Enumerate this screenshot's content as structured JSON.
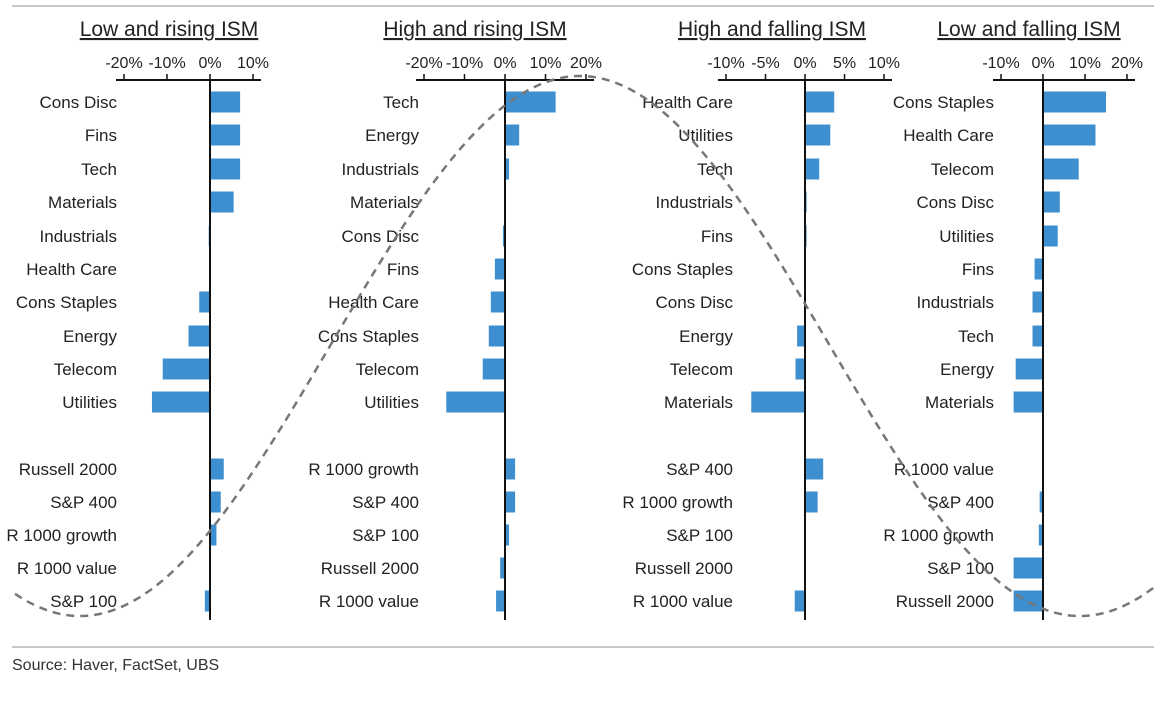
{
  "source": "Source: Haver, FactSet, UBS",
  "colors": {
    "bar": "#3e8fd0",
    "axis": "#111111",
    "wave": "#777777"
  },
  "chart_data": [
    {
      "type": "bar",
      "orientation": "horizontal",
      "title": "Low and rising ISM",
      "xlim": [
        -25,
        12
      ],
      "xticks": [
        -20,
        -10,
        0,
        10
      ],
      "xtick_labels": [
        "-20%",
        "-10%",
        "0%",
        "10%"
      ],
      "categories": [
        "Cons Disc",
        "Fins",
        "Tech",
        "Materials",
        "Industrials",
        "Health Care",
        "Cons Staples",
        "Energy",
        "Telecom",
        "Utilities",
        "",
        "Russell 2000",
        "S&P 400",
        "R 1000 growth",
        "R 1000 value",
        "S&P 100"
      ],
      "values": [
        7,
        7,
        7,
        5.5,
        -0.3,
        -0.2,
        -2.5,
        -5,
        -11,
        -13.5,
        null,
        3.2,
        2.5,
        1.5,
        -0.2,
        -1.2
      ]
    },
    {
      "type": "bar",
      "orientation": "horizontal",
      "title": "High and rising ISM",
      "xlim": [
        -25,
        22
      ],
      "xticks": [
        -20,
        -10,
        0,
        10,
        20
      ],
      "xtick_labels": [
        "-20%",
        "-10%",
        "0%",
        "10%",
        "20%"
      ],
      "categories": [
        "Tech",
        "Energy",
        "Industrials",
        "Materials",
        "Cons Disc",
        "Fins",
        "Health Care",
        "Cons Staples",
        "Telecom",
        "Utilities",
        "",
        "R 1000 growth",
        "S&P 400",
        "S&P 100",
        "Russell 2000",
        "R 1000 value"
      ],
      "values": [
        12.5,
        3.5,
        1,
        0,
        -0.5,
        -2.5,
        -3.5,
        -4,
        -5.5,
        -14.5,
        null,
        2.5,
        2.5,
        1,
        -1.2,
        -2.2
      ]
    },
    {
      "type": "bar",
      "orientation": "horizontal",
      "title": "High and falling ISM",
      "xlim": [
        -13,
        12
      ],
      "xticks": [
        -10,
        -5,
        0,
        5,
        10
      ],
      "xtick_labels": [
        "-10%",
        "-5%",
        "0%",
        "5%",
        "10%"
      ],
      "categories": [
        "Health Care",
        "Utilities",
        "Tech",
        "Industrials",
        "Fins",
        "Cons Staples",
        "Cons Disc",
        "Energy",
        "Telecom",
        "Materials",
        "",
        "S&P 400",
        "R 1000 growth",
        "S&P 100",
        "Russell 2000",
        "R 1000 value"
      ],
      "values": [
        3.7,
        3.2,
        1.8,
        0.2,
        0.2,
        0,
        0,
        -1,
        -1.2,
        -6.8,
        null,
        2.3,
        1.6,
        0,
        0,
        -1.3
      ]
    },
    {
      "type": "bar",
      "orientation": "horizontal",
      "title": "Low and falling ISM",
      "xlim": [
        -15,
        23
      ],
      "xticks": [
        -10,
        0,
        10,
        20
      ],
      "xtick_labels": [
        "-10%",
        "0%",
        "10%",
        "20%"
      ],
      "categories": [
        "Cons Staples",
        "Health Care",
        "Telecom",
        "Cons Disc",
        "Utilities",
        "Fins",
        "Industrials",
        "Tech",
        "Energy",
        "Materials",
        "",
        "R 1000 value",
        "S&P 400",
        "R 1000 growth",
        "S&P 100",
        "Russell 2000"
      ],
      "values": [
        15,
        12.5,
        8.5,
        4,
        3.5,
        -2,
        -2.5,
        -2.5,
        -6.5,
        -7,
        null,
        0,
        -0.8,
        -1,
        -7,
        -7
      ]
    }
  ]
}
